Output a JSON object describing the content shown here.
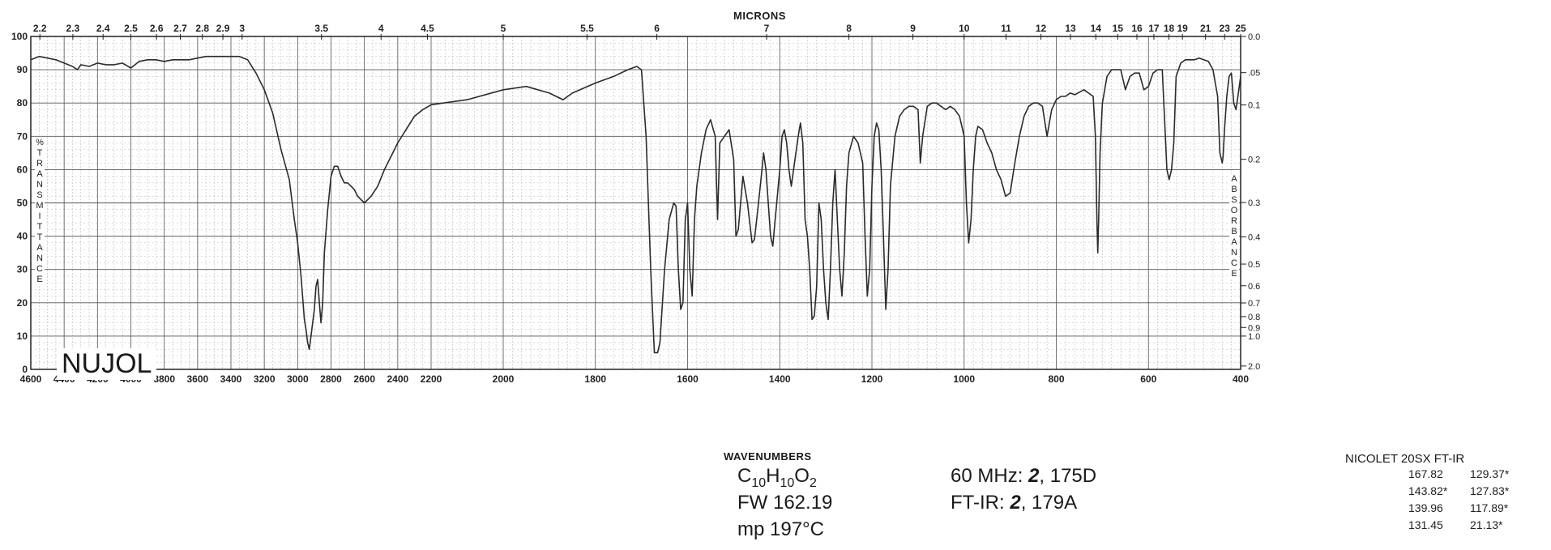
{
  "top_axis": {
    "label": "MICRONS",
    "ticks": [
      "2.2",
      "2.3",
      "2.4",
      "2.5",
      "2.6",
      "2.7",
      "2.8",
      "2.9",
      "3",
      "3.5",
      "4",
      "4.5",
      "5",
      "5.5",
      "6",
      "7",
      "8",
      "9",
      "10",
      "11",
      "12",
      "13",
      "14",
      "15",
      "16",
      "17",
      "18",
      "19",
      "21",
      "23",
      "25"
    ]
  },
  "bottom_axis": {
    "label": "WAVENUMBERS",
    "ticks": [
      "4600",
      "4400",
      "4200",
      "4000",
      "3800",
      "3600",
      "3400",
      "3200",
      "3000",
      "2800",
      "2600",
      "2400",
      "2200",
      "2000",
      "1800",
      "1600",
      "1400",
      "1200",
      "1000",
      "800",
      "600",
      "400"
    ]
  },
  "left_axis": {
    "label_percent": "%",
    "label_letters": [
      "T",
      "R",
      "A",
      "N",
      "S",
      "M",
      "I",
      "T",
      "T",
      "A",
      "N",
      "C",
      "E"
    ],
    "ticks": [
      "100",
      "90",
      "80",
      "70",
      "60",
      "50",
      "40",
      "30",
      "20",
      "10",
      "0"
    ]
  },
  "right_axis": {
    "label_letters": [
      "A",
      "B",
      "S",
      "O",
      "R",
      "B",
      "A",
      "N",
      "C",
      "E"
    ],
    "ticks": [
      "0.0",
      ".05",
      "0.1",
      "0.2",
      "0.3",
      "0.4",
      "0.5",
      "0.6",
      "0.7",
      "0.8",
      "0.9",
      "1.0",
      "2.0"
    ]
  },
  "annotations": {
    "sample_medium": "NUJOL",
    "formula_main": "C",
    "formula_sub1": "10",
    "formula_h": "H",
    "formula_sub2": "10",
    "formula_o": "O",
    "formula_sub3": "2",
    "fw": "FW 162.19",
    "mp": "mp 197°C",
    "nmr_prefix": "60 MHz: ",
    "nmr_vol": "2",
    "nmr_page": ", 175D",
    "ftir_prefix": "FT-IR: ",
    "ftir_vol": "2",
    "ftir_page": ", 179A",
    "instrument": "NICOLET 20SX FT-IR",
    "peaks": [
      [
        "167.82",
        "129.37*"
      ],
      [
        "143.82*",
        "127.83*"
      ],
      [
        "139.96",
        "117.89*"
      ],
      [
        "131.45",
        "21.13*"
      ]
    ]
  },
  "chart_data": {
    "type": "line",
    "xlabel": "WAVENUMBERS",
    "ylabel": "% TRANSMITTANCE",
    "xlim": [
      4600,
      400
    ],
    "ylim": [
      0,
      100
    ],
    "grid": true,
    "series": [
      {
        "points": [
          [
            4600,
            93
          ],
          [
            4550,
            94
          ],
          [
            4500,
            93.5
          ],
          [
            4450,
            93
          ],
          [
            4400,
            92
          ],
          [
            4350,
            91
          ],
          [
            4320,
            90
          ],
          [
            4300,
            91.5
          ],
          [
            4250,
            91
          ],
          [
            4200,
            92
          ],
          [
            4150,
            91.5
          ],
          [
            4100,
            91.5
          ],
          [
            4050,
            92
          ],
          [
            4000,
            90.5
          ],
          [
            3950,
            92.5
          ],
          [
            3900,
            93
          ],
          [
            3850,
            93
          ],
          [
            3800,
            92.5
          ],
          [
            3750,
            93
          ],
          [
            3700,
            93
          ],
          [
            3650,
            93
          ],
          [
            3600,
            93.5
          ],
          [
            3550,
            94
          ],
          [
            3500,
            94
          ],
          [
            3450,
            94
          ],
          [
            3400,
            94
          ],
          [
            3350,
            94
          ],
          [
            3300,
            93
          ],
          [
            3250,
            89
          ],
          [
            3200,
            84
          ],
          [
            3150,
            77
          ],
          [
            3100,
            66
          ],
          [
            3050,
            57
          ],
          [
            3020,
            45
          ],
          [
            3000,
            38
          ],
          [
            2980,
            28
          ],
          [
            2960,
            15
          ],
          [
            2950,
            12
          ],
          [
            2940,
            8
          ],
          [
            2930,
            6
          ],
          [
            2920,
            10
          ],
          [
            2900,
            18
          ],
          [
            2890,
            25
          ],
          [
            2880,
            27
          ],
          [
            2870,
            20
          ],
          [
            2860,
            14
          ],
          [
            2850,
            20
          ],
          [
            2840,
            35
          ],
          [
            2820,
            48
          ],
          [
            2800,
            58
          ],
          [
            2780,
            61
          ],
          [
            2760,
            61
          ],
          [
            2740,
            58
          ],
          [
            2720,
            56
          ],
          [
            2700,
            56
          ],
          [
            2680,
            55
          ],
          [
            2660,
            54
          ],
          [
            2640,
            52
          ],
          [
            2620,
            51
          ],
          [
            2600,
            50
          ],
          [
            2580,
            51
          ],
          [
            2560,
            52
          ],
          [
            2520,
            55
          ],
          [
            2480,
            60
          ],
          [
            2440,
            64
          ],
          [
            2400,
            68
          ],
          [
            2350,
            72
          ],
          [
            2300,
            76
          ],
          [
            2250,
            78
          ],
          [
            2200,
            79.5
          ],
          [
            2100,
            81
          ],
          [
            2000,
            84
          ],
          [
            1950,
            85
          ],
          [
            1900,
            83
          ],
          [
            1870,
            81
          ],
          [
            1850,
            83
          ],
          [
            1800,
            86
          ],
          [
            1760,
            88
          ],
          [
            1730,
            90
          ],
          [
            1710,
            91
          ],
          [
            1700,
            90
          ],
          [
            1690,
            70
          ],
          [
            1680,
            30
          ],
          [
            1672,
            5
          ],
          [
            1665,
            5
          ],
          [
            1660,
            8
          ],
          [
            1650,
            30
          ],
          [
            1640,
            45
          ],
          [
            1630,
            50
          ],
          [
            1625,
            49
          ],
          [
            1620,
            30
          ],
          [
            1615,
            18
          ],
          [
            1610,
            20
          ],
          [
            1605,
            45
          ],
          [
            1600,
            50
          ],
          [
            1595,
            30
          ],
          [
            1590,
            22
          ],
          [
            1585,
            45
          ],
          [
            1580,
            55
          ],
          [
            1570,
            65
          ],
          [
            1560,
            72
          ],
          [
            1550,
            75
          ],
          [
            1540,
            70
          ],
          [
            1535,
            45
          ],
          [
            1530,
            68
          ],
          [
            1520,
            70
          ],
          [
            1510,
            72
          ],
          [
            1500,
            63
          ],
          [
            1495,
            40
          ],
          [
            1490,
            42
          ],
          [
            1480,
            58
          ],
          [
            1470,
            50
          ],
          [
            1460,
            38
          ],
          [
            1455,
            39
          ],
          [
            1450,
            45
          ],
          [
            1440,
            58
          ],
          [
            1435,
            65
          ],
          [
            1430,
            60
          ],
          [
            1420,
            40
          ],
          [
            1415,
            37
          ],
          [
            1410,
            45
          ],
          [
            1400,
            60
          ],
          [
            1395,
            70
          ],
          [
            1390,
            72
          ],
          [
            1385,
            68
          ],
          [
            1380,
            60
          ],
          [
            1375,
            55
          ],
          [
            1370,
            60
          ],
          [
            1360,
            70
          ],
          [
            1355,
            74
          ],
          [
            1350,
            68
          ],
          [
            1345,
            45
          ],
          [
            1340,
            40
          ],
          [
            1335,
            30
          ],
          [
            1330,
            15
          ],
          [
            1325,
            16
          ],
          [
            1320,
            25
          ],
          [
            1315,
            50
          ],
          [
            1310,
            45
          ],
          [
            1305,
            30
          ],
          [
            1300,
            20
          ],
          [
            1295,
            15
          ],
          [
            1290,
            30
          ],
          [
            1285,
            50
          ],
          [
            1280,
            60
          ],
          [
            1275,
            45
          ],
          [
            1270,
            30
          ],
          [
            1265,
            22
          ],
          [
            1260,
            35
          ],
          [
            1255,
            55
          ],
          [
            1250,
            65
          ],
          [
            1240,
            70
          ],
          [
            1230,
            68
          ],
          [
            1220,
            62
          ],
          [
            1215,
            40
          ],
          [
            1210,
            22
          ],
          [
            1205,
            30
          ],
          [
            1200,
            55
          ],
          [
            1195,
            70
          ],
          [
            1190,
            74
          ],
          [
            1185,
            72
          ],
          [
            1180,
            60
          ],
          [
            1175,
            40
          ],
          [
            1170,
            18
          ],
          [
            1165,
            30
          ],
          [
            1160,
            55
          ],
          [
            1150,
            70
          ],
          [
            1140,
            76
          ],
          [
            1130,
            78
          ],
          [
            1120,
            79
          ],
          [
            1110,
            79
          ],
          [
            1100,
            78
          ],
          [
            1095,
            62
          ],
          [
            1090,
            70
          ],
          [
            1080,
            79
          ],
          [
            1070,
            80
          ],
          [
            1060,
            80
          ],
          [
            1050,
            79
          ],
          [
            1040,
            78
          ],
          [
            1030,
            79
          ],
          [
            1020,
            78
          ],
          [
            1010,
            76
          ],
          [
            1000,
            70
          ],
          [
            995,
            50
          ],
          [
            990,
            38
          ],
          [
            985,
            45
          ],
          [
            980,
            60
          ],
          [
            975,
            70
          ],
          [
            970,
            73
          ],
          [
            960,
            72
          ],
          [
            950,
            68
          ],
          [
            940,
            65
          ],
          [
            930,
            60
          ],
          [
            920,
            57
          ],
          [
            910,
            52
          ],
          [
            900,
            53
          ],
          [
            890,
            62
          ],
          [
            880,
            70
          ],
          [
            870,
            76
          ],
          [
            860,
            79
          ],
          [
            850,
            80
          ],
          [
            840,
            80
          ],
          [
            830,
            79
          ],
          [
            820,
            70
          ],
          [
            810,
            78
          ],
          [
            800,
            81
          ],
          [
            790,
            82
          ],
          [
            780,
            82
          ],
          [
            770,
            83
          ],
          [
            760,
            82.5
          ],
          [
            740,
            84
          ],
          [
            730,
            83
          ],
          [
            720,
            82
          ],
          [
            715,
            70
          ],
          [
            712,
            45
          ],
          [
            710,
            35
          ],
          [
            708,
            45
          ],
          [
            705,
            65
          ],
          [
            700,
            80
          ],
          [
            690,
            88
          ],
          [
            680,
            90
          ],
          [
            670,
            90
          ],
          [
            660,
            90
          ],
          [
            650,
            84
          ],
          [
            640,
            88
          ],
          [
            630,
            89
          ],
          [
            620,
            89
          ],
          [
            610,
            84
          ],
          [
            600,
            85
          ],
          [
            595,
            87
          ],
          [
            590,
            89
          ],
          [
            580,
            90
          ],
          [
            570,
            90
          ],
          [
            560,
            60
          ],
          [
            555,
            57
          ],
          [
            550,
            60
          ],
          [
            545,
            68
          ],
          [
            540,
            88
          ],
          [
            530,
            92
          ],
          [
            520,
            93
          ],
          [
            510,
            93
          ],
          [
            500,
            93
          ],
          [
            490,
            93.5
          ],
          [
            480,
            93
          ],
          [
            470,
            92.5
          ],
          [
            460,
            90
          ],
          [
            450,
            82
          ],
          [
            445,
            65
          ],
          [
            440,
            62
          ],
          [
            438,
            64
          ],
          [
            435,
            72
          ],
          [
            430,
            82
          ],
          [
            425,
            88
          ],
          [
            420,
            89
          ],
          [
            415,
            80
          ],
          [
            410,
            78
          ],
          [
            405,
            83
          ],
          [
            400,
            88
          ]
        ]
      }
    ]
  }
}
